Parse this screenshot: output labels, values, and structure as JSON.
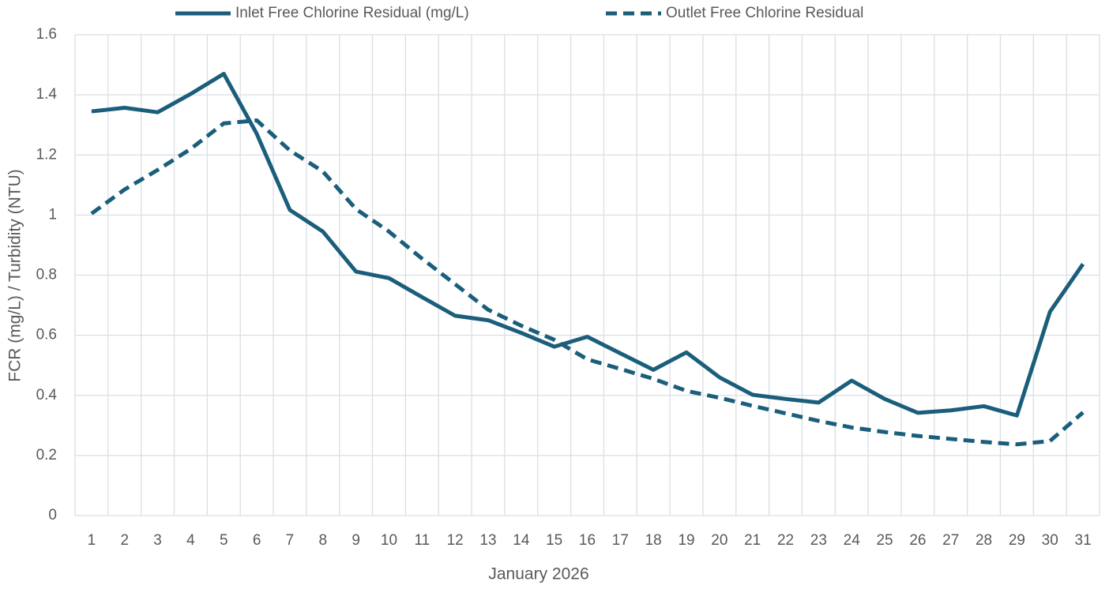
{
  "chart_data": {
    "type": "line",
    "x_label": "January 2026",
    "y_label": "FCR (mg/L) / Turbidity (NTU)",
    "categories": [
      "1",
      "2",
      "3",
      "4",
      "5",
      "6",
      "7",
      "8",
      "9",
      "10",
      "11",
      "12",
      "13",
      "14",
      "15",
      "16",
      "17",
      "18",
      "19",
      "20",
      "21",
      "22",
      "23",
      "24",
      "25",
      "26",
      "27",
      "28",
      "29",
      "30",
      "31"
    ],
    "series": [
      {
        "name": "Inlet Free Chlorine Residual (mg/L)",
        "color": "#1b5e7b",
        "line_style": "solid",
        "values": [
          1.345,
          1.357,
          1.342,
          1.403,
          1.47,
          1.27,
          1.017,
          0.945,
          0.812,
          0.79,
          0.727,
          0.665,
          0.65,
          0.608,
          0.562,
          0.595,
          0.54,
          0.485,
          0.543,
          0.46,
          0.402,
          0.388,
          0.376,
          0.449,
          0.388,
          0.342,
          0.35,
          0.364,
          0.333,
          0.678,
          0.837
        ]
      },
      {
        "name": "Outlet Free Chlorine Residual",
        "color": "#1b5e7b",
        "line_style": "dashed",
        "values": [
          1.005,
          1.085,
          1.15,
          1.22,
          1.305,
          1.315,
          1.215,
          1.145,
          1.02,
          0.945,
          0.855,
          0.77,
          0.685,
          0.632,
          0.585,
          0.52,
          0.488,
          0.455,
          0.415,
          0.392,
          0.365,
          0.34,
          0.315,
          0.293,
          0.278,
          0.265,
          0.255,
          0.245,
          0.237,
          0.248,
          0.343
        ]
      }
    ],
    "ylim": [
      0,
      1.6
    ],
    "yticks": [
      0,
      0.2,
      0.4,
      0.6,
      0.8,
      1,
      1.2,
      1.4,
      1.6
    ],
    "grid": true,
    "legend_position": "top"
  }
}
